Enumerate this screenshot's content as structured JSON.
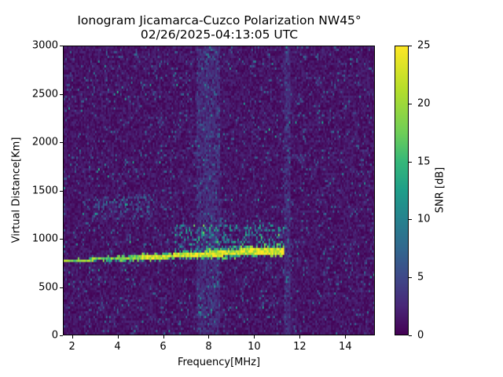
{
  "chart_data": {
    "type": "heatmap",
    "title": "Ionogram Jicamarca-Cuzco Polarization NW45°",
    "subtitle": "02/26/2025-04:13:05 UTC",
    "xlabel": "Frequency[MHz]",
    "ylabel": "Virtual Distance[Km]",
    "xlim": [
      1.6,
      15.3
    ],
    "ylim": [
      0,
      3000
    ],
    "xticks": [
      2,
      4,
      6,
      8,
      10,
      12,
      14
    ],
    "yticks": [
      0,
      500,
      1000,
      1500,
      2000,
      2500,
      3000
    ],
    "colorbar": {
      "label": "SNR [dB]",
      "range": [
        0,
        25
      ],
      "ticks": [
        0,
        5,
        10,
        15,
        20,
        25
      ],
      "colormap": "viridis"
    },
    "features": [
      {
        "name": "main-trace",
        "description": "strong echo trace rising slowly with frequency",
        "points": [
          [
            1.9,
            780
          ],
          [
            3,
            795
          ],
          [
            4,
            805
          ],
          [
            5,
            815
          ],
          [
            6,
            825
          ],
          [
            7,
            840
          ],
          [
            8,
            850
          ],
          [
            9,
            865
          ],
          [
            10,
            880
          ],
          [
            11,
            885
          ]
        ],
        "snr_peak_db": 25,
        "end_freq_mhz": 11.3
      },
      {
        "name": "diffuse-spread",
        "description": "spread echoes above main trace",
        "freq_range": [
          6.5,
          11.3
        ],
        "distance_range": [
          880,
          1150
        ],
        "snr_db": 12
      },
      {
        "name": "faint-second-layer",
        "description": "faint echoes around 1300 km",
        "freq_range": [
          2.8,
          5.5
        ],
        "distance_range": [
          1200,
          1450
        ],
        "snr_db": 6
      },
      {
        "name": "interference-band",
        "description": "vertical noise band",
        "freq_range": [
          7.4,
          8.5
        ],
        "snr_db": 3
      },
      {
        "name": "interference-line",
        "description": "vertical noise line",
        "freq_range": [
          11.3,
          11.6
        ],
        "snr_db": 3
      }
    ],
    "background_snr_db": 1
  }
}
